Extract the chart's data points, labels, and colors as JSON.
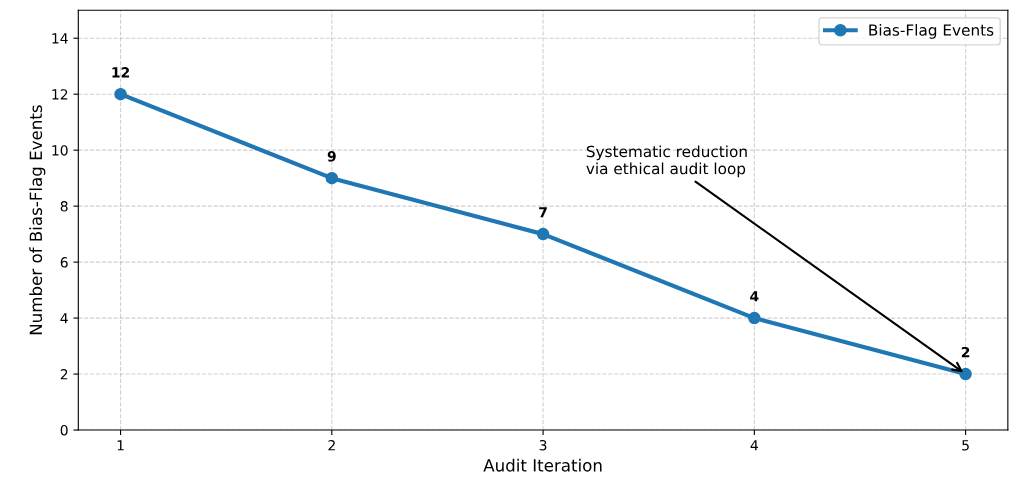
{
  "chart_data": {
    "type": "line",
    "xlabel": "Audit Iteration",
    "ylabel": "Number of Bias-Flag Events",
    "x": [
      1,
      2,
      3,
      4,
      5
    ],
    "series": [
      {
        "name": "Bias-Flag Events",
        "color": "#1f77b4",
        "values": [
          12,
          9,
          7,
          4,
          2
        ]
      }
    ],
    "xlim": [
      0.8,
      5.2
    ],
    "xticks": [
      1,
      2,
      3,
      4,
      5
    ],
    "ylim": [
      0,
      15
    ],
    "yticks": [
      0,
      2,
      4,
      6,
      8,
      10,
      12,
      14
    ],
    "grid": true,
    "legend": "top right",
    "marker": "circle",
    "line_style": "solid",
    "data_labels": true,
    "annotations": [
      {
        "text": "Systematic reduction\nvia ethical audit loop",
        "x": 5,
        "y": 2
      }
    ]
  }
}
